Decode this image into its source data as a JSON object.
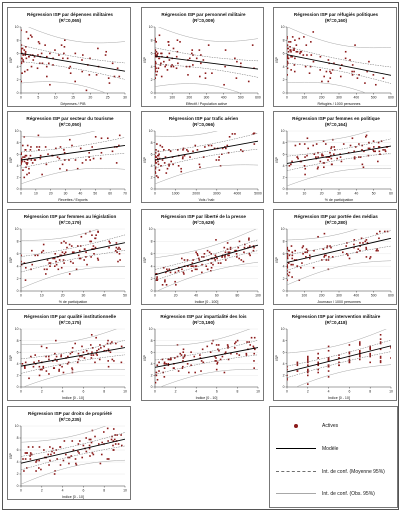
{
  "colors": {
    "point": "#8b1a1a",
    "fit": "#000000",
    "ci_mean": "#6f6f6f",
    "ci_obs": "#a8a8a8",
    "frame": "#777777"
  },
  "legend": {
    "items": [
      {
        "label": "Actives",
        "style": "points"
      },
      {
        "label": "Modèle",
        "style": "solid"
      },
      {
        "label": "Int. de conf. (Moyenne 95%)",
        "style": "dashed"
      },
      {
        "label": "Int. de conf. (Obs. 95%)",
        "style": "thin"
      }
    ]
  },
  "chart_data": [
    {
      "type": "scatter",
      "title": "Régression ISP par dépenses militaires",
      "subtitle": "(R²=0,065)",
      "xlabel": "Dépenses / PIB",
      "ylabel": "ISP",
      "xlim": [
        0,
        30
      ],
      "ylim": [
        0,
        10
      ],
      "xticks": [
        "0",
        "5",
        "10",
        "15",
        "20",
        "25",
        "30"
      ],
      "yticks": [
        "0",
        "2",
        "4",
        "6",
        "8",
        "10"
      ],
      "fit": [
        6.0,
        -0.09
      ],
      "band_mean": 1.0,
      "band_obs": 3.6,
      "seed": 11,
      "n": 85,
      "xdist": "skew",
      "grid": false
    },
    {
      "type": "scatter",
      "title": "Régression ISP par personnel militaire",
      "subtitle": "(R²=0,009)",
      "xlabel": "Effectif / Population active",
      "ylabel": "ISP",
      "xlim": [
        0,
        600
      ],
      "ylim": [
        0,
        10
      ],
      "xticks": [
        "0",
        "100",
        "200",
        "300",
        "400",
        "500",
        "600"
      ],
      "yticks": [
        "0",
        "2",
        "4",
        "6",
        "8",
        "10"
      ],
      "fit": [
        5.6,
        -0.0033
      ],
      "band_mean": 1.0,
      "band_obs": 3.7,
      "seed": 23,
      "n": 85,
      "xdist": "skew",
      "grid": false
    },
    {
      "type": "scatter",
      "title": "Régression ISP par réfugiés politiques",
      "subtitle": "(R²=0,160)",
      "xlabel": "Réfugiés / 1000 personnes",
      "ylabel": "ISP",
      "xlim": [
        0,
        600
      ],
      "ylim": [
        0,
        10
      ],
      "xticks": [
        "0",
        "100",
        "200",
        "300",
        "400",
        "500",
        "600"
      ],
      "yticks": [
        "0",
        "2",
        "4",
        "6",
        "8",
        "10"
      ],
      "fit": [
        5.8,
        -0.0052
      ],
      "band_mean": 1.0,
      "band_obs": 3.4,
      "seed": 37,
      "n": 85,
      "xdist": "skew",
      "grid": false
    },
    {
      "type": "scatter",
      "title": "Régression ISP par secteur du tourisme",
      "subtitle": "(R²=0,050)",
      "xlabel": "Recettes / Exports",
      "ylabel": "ISP",
      "xlim": [
        0,
        70
      ],
      "ylim": [
        0,
        10
      ],
      "xticks": [
        "0",
        "10",
        "20",
        "30",
        "40",
        "50",
        "60",
        "70"
      ],
      "yticks": [
        "0",
        "2",
        "4",
        "6",
        "8",
        "10"
      ],
      "fit": [
        5.0,
        0.036
      ],
      "band_mean": 1.1,
      "band_obs": 3.3,
      "seed": 41,
      "n": 85,
      "xdist": "skew",
      "grid": false
    },
    {
      "type": "scatter",
      "title": "Régression ISP par trafic aérien",
      "subtitle": "(R²=0,066)",
      "xlabel": "Vols / hab",
      "ylabel": "ISP",
      "xlim": [
        0,
        5000
      ],
      "ylim": [
        0,
        10
      ],
      "xticks": [
        "0",
        "1000",
        "2000",
        "3000",
        "4000",
        "5000"
      ],
      "yticks": [
        "0",
        "2",
        "4",
        "6",
        "8",
        "10"
      ],
      "fit": [
        5.0,
        0.00065
      ],
      "band_mean": 1.1,
      "band_obs": 3.3,
      "seed": 53,
      "n": 85,
      "xdist": "skew",
      "grid": false
    },
    {
      "type": "scatter",
      "title": "Régression ISP par femmes en politique",
      "subtitle": "(R²=0,164)",
      "xlabel": "% de participation",
      "ylabel": "ISP",
      "xlim": [
        0,
        60
      ],
      "ylim": [
        0,
        10
      ],
      "xticks": [
        "0",
        "10",
        "20",
        "30",
        "40",
        "50",
        "60"
      ],
      "yticks": [
        "0",
        "2",
        "4",
        "6",
        "8",
        "10"
      ],
      "fit": [
        4.4,
        0.05
      ],
      "band_mean": 1.0,
      "band_obs": 3.1,
      "seed": 61,
      "n": 95,
      "xdist": "uniform",
      "grid": true
    },
    {
      "type": "scatter",
      "title": "Régression ISP par femmes au législatiion",
      "subtitle": "(R²=0,179)",
      "xlabel": "% de participation",
      "ylabel": "ISP",
      "xlim": [
        0,
        50
      ],
      "ylim": [
        0,
        10
      ],
      "xticks": [
        "0",
        "10",
        "20",
        "30",
        "40",
        "50"
      ],
      "yticks": [
        "0",
        "2",
        "4",
        "6",
        "8",
        "10"
      ],
      "fit": [
        4.3,
        0.07
      ],
      "band_mean": 1.0,
      "band_obs": 3.1,
      "seed": 71,
      "n": 95,
      "xdist": "uniform",
      "grid": true
    },
    {
      "type": "scatter",
      "title": "Régression ISP par liberté de la presse",
      "subtitle": "(R²=0,629)",
      "xlabel": "Indice [0 - 100]",
      "ylabel": "ISP",
      "xlim": [
        0,
        100
      ],
      "ylim": [
        0,
        10
      ],
      "xticks": [
        "0",
        "20",
        "40",
        "60",
        "80",
        "100"
      ],
      "yticks": [
        "0",
        "2",
        "4",
        "6",
        "8",
        "10"
      ],
      "fit": [
        2.6,
        0.048
      ],
      "band_mean": 0.7,
      "band_obs": 2.2,
      "seed": 83,
      "n": 110,
      "xdist": "uniform",
      "grid": true
    },
    {
      "type": "scatter",
      "title": "Régression ISP par portée des médias",
      "subtitle": "(R²=0,280)",
      "xlabel": "Journaux / 1000 personnes",
      "ylabel": "ISP",
      "xlim": [
        0,
        600
      ],
      "ylim": [
        0,
        10
      ],
      "xticks": [
        "0",
        "100",
        "200",
        "300",
        "400",
        "500",
        "600"
      ],
      "yticks": [
        "0",
        "2",
        "4",
        "6",
        "8",
        "10"
      ],
      "fit": [
        4.6,
        0.0065
      ],
      "band_mean": 1.0,
      "band_obs": 2.9,
      "seed": 97,
      "n": 95,
      "xdist": "skew",
      "grid": true
    },
    {
      "type": "scatter",
      "title": "Régression ISP par qualité institutionnelle",
      "subtitle": "(R²=0,175)",
      "xlabel": "Indice [0 - 10]",
      "ylabel": "ISP",
      "xlim": [
        0,
        10
      ],
      "ylim": [
        0,
        10
      ],
      "xticks": [
        "0",
        "2",
        "4",
        "6",
        "8",
        "10"
      ],
      "yticks": [
        "0",
        "2",
        "4",
        "6",
        "8",
        "10"
      ],
      "fit": [
        3.6,
        0.32
      ],
      "band_mean": 1.0,
      "band_obs": 3.0,
      "seed": 101,
      "n": 95,
      "xdist": "uniform",
      "grid": true
    },
    {
      "type": "scatter",
      "title": "Régression ISP par impartialité des lois",
      "subtitle": "(R²=0,190)",
      "xlabel": "Indice [0 - 10]",
      "ylabel": "ISP",
      "xlim": [
        0,
        10
      ],
      "ylim": [
        0,
        10
      ],
      "xticks": [
        "0",
        "2",
        "4",
        "6",
        "8",
        "10"
      ],
      "yticks": [
        "0",
        "2",
        "4",
        "6",
        "8",
        "10"
      ],
      "fit": [
        3.4,
        0.34
      ],
      "band_mean": 1.0,
      "band_obs": 3.0,
      "seed": 113,
      "n": 95,
      "xdist": "uniform",
      "grid": true
    },
    {
      "type": "scatter",
      "title": "Régression ISP par intervention militaire",
      "subtitle": "(R²=0,418)",
      "xlabel": "Indice [0 - 10]",
      "ylabel": "ISP",
      "xlim": [
        0,
        10
      ],
      "ylim": [
        0,
        10
      ],
      "xticks": [
        "0",
        "2",
        "4",
        "6",
        "8",
        "10"
      ],
      "yticks": [
        "0",
        "2",
        "4",
        "6",
        "8",
        "10"
      ],
      "fit": [
        2.6,
        0.45
      ],
      "band_mean": 0.8,
      "band_obs": 2.6,
      "seed": 127,
      "n": 95,
      "xdist": "discrete",
      "grid": false
    },
    {
      "type": "scatter",
      "title": "Régression ISP par droits de propriété",
      "subtitle": "(R²=0,235)",
      "xlabel": "Indice [0 - 10]",
      "ylabel": "ISP",
      "xlim": [
        0,
        10
      ],
      "ylim": [
        0,
        10
      ],
      "xticks": [
        "0",
        "2",
        "4",
        "6",
        "8",
        "10"
      ],
      "yticks": [
        "0",
        "2",
        "4",
        "6",
        "8",
        "10"
      ],
      "fit": [
        3.8,
        0.4
      ],
      "band_mean": 0.9,
      "band_obs": 2.8,
      "seed": 131,
      "n": 95,
      "xdist": "uniform",
      "grid": true
    }
  ]
}
